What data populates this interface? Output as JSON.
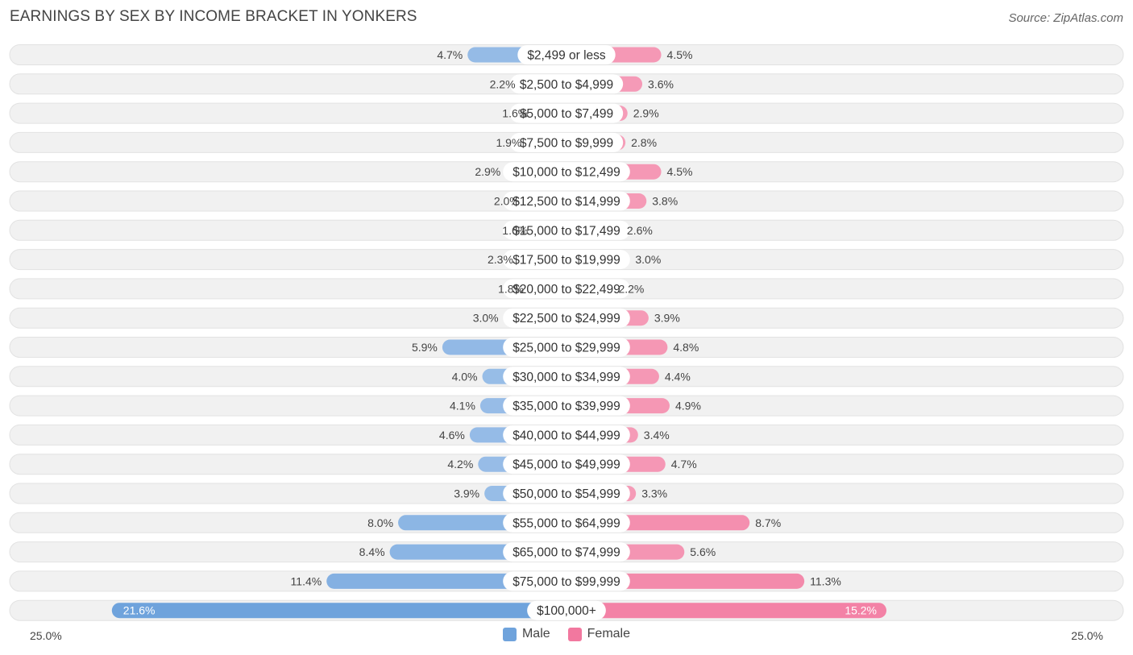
{
  "title": "EARNINGS BY SEX BY INCOME BRACKET IN YONKERS",
  "source": "Source: ZipAtlas.com",
  "colors": {
    "male": "#6fa3dc",
    "male_light": "#a9c8ec",
    "female": "#f2789f",
    "female_light": "#f6a8c0",
    "row_bg": "#f1f1f1"
  },
  "axis": {
    "left_label": "25.0%",
    "right_label": "25.0%"
  },
  "legend": {
    "male": "Male",
    "female": "Female"
  },
  "chart_data": {
    "type": "bar",
    "orientation": "horizontal-diverging",
    "title": "EARNINGS BY SEX BY INCOME BRACKET IN YONKERS",
    "xlim": [
      -25,
      25
    ],
    "categories": [
      "$2,499 or less",
      "$2,500 to $4,999",
      "$5,000 to $7,499",
      "$7,500 to $9,999",
      "$10,000 to $12,499",
      "$12,500 to $14,999",
      "$15,000 to $17,499",
      "$17,500 to $19,999",
      "$20,000 to $22,499",
      "$22,500 to $24,999",
      "$25,000 to $29,999",
      "$30,000 to $34,999",
      "$35,000 to $39,999",
      "$40,000 to $44,999",
      "$45,000 to $49,999",
      "$50,000 to $54,999",
      "$55,000 to $64,999",
      "$65,000 to $74,999",
      "$75,000 to $99,999",
      "$100,000+"
    ],
    "series": [
      {
        "name": "Male",
        "values": [
          4.7,
          2.2,
          1.6,
          1.9,
          2.9,
          2.0,
          1.6,
          2.3,
          1.8,
          3.0,
          5.9,
          4.0,
          4.1,
          4.6,
          4.2,
          3.9,
          8.0,
          8.4,
          11.4,
          21.6
        ],
        "labels": [
          "4.7%",
          "2.2%",
          "1.6%",
          "1.9%",
          "2.9%",
          "2.0%",
          "1.6%",
          "2.3%",
          "1.8%",
          "3.0%",
          "5.9%",
          "4.0%",
          "4.1%",
          "4.6%",
          "4.2%",
          "3.9%",
          "8.0%",
          "8.4%",
          "11.4%",
          "21.6%"
        ]
      },
      {
        "name": "Female",
        "values": [
          4.5,
          3.6,
          2.9,
          2.8,
          4.5,
          3.8,
          2.6,
          3.0,
          2.2,
          3.9,
          4.8,
          4.4,
          4.9,
          3.4,
          4.7,
          3.3,
          8.7,
          5.6,
          11.3,
          15.2
        ],
        "labels": [
          "4.5%",
          "3.6%",
          "2.9%",
          "2.8%",
          "4.5%",
          "3.8%",
          "2.6%",
          "3.0%",
          "2.2%",
          "3.9%",
          "4.8%",
          "4.4%",
          "4.9%",
          "3.4%",
          "4.7%",
          "3.3%",
          "8.7%",
          "5.6%",
          "11.3%",
          "15.2%"
        ]
      }
    ],
    "legend_position": "bottom-center"
  }
}
